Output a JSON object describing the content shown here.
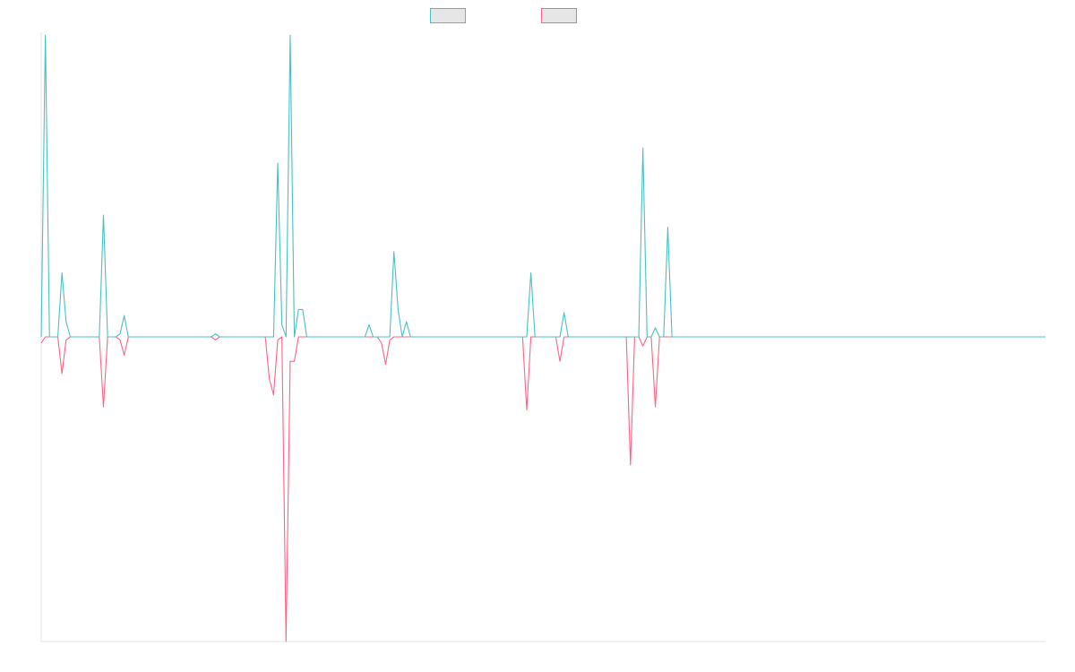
{
  "chart_data": {
    "type": "line",
    "title": "",
    "xlabel": "",
    "ylabel": "",
    "grid": false,
    "legend_placement": "top-center",
    "ylim": [
      -1,
      1
    ],
    "series": [
      {
        "color": "#4bc0c0",
        "legend_swatch_fill": "#e6e6e6",
        "values": [
          0,
          0.99,
          0,
          0,
          0,
          0.21,
          0.05,
          0,
          0,
          0,
          0,
          0,
          0,
          0,
          0,
          0.4,
          0,
          0,
          0,
          0.01,
          0.07,
          0,
          0,
          0,
          0,
          0,
          0,
          0,
          0,
          0,
          0,
          0,
          0,
          0,
          0,
          0,
          0,
          0,
          0,
          0,
          0,
          0,
          0.01,
          0,
          0,
          0,
          0,
          0,
          0,
          0,
          0,
          0,
          0,
          0,
          0,
          0,
          0,
          0.57,
          0.04,
          0,
          0.99,
          0,
          0.09,
          0.09,
          0,
          0,
          0,
          0,
          0,
          0,
          0,
          0,
          0,
          0,
          0,
          0,
          0,
          0,
          0,
          0.04,
          0,
          0,
          0,
          0,
          0,
          0.28,
          0.09,
          0,
          0.05,
          0,
          0,
          0,
          0,
          0,
          0,
          0,
          0,
          0,
          0,
          0,
          0,
          0,
          0,
          0,
          0,
          0,
          0,
          0,
          0,
          0,
          0,
          0,
          0,
          0,
          0,
          0,
          0,
          0,
          0.21,
          0,
          0,
          0,
          0,
          0,
          0,
          0,
          0.08,
          0,
          0,
          0,
          0,
          0,
          0,
          0,
          0,
          0,
          0,
          0,
          0,
          0,
          0,
          0,
          0,
          0,
          0,
          0.62,
          0,
          0,
          0.03,
          0,
          0,
          0.36,
          0,
          0,
          0,
          0,
          0,
          0,
          0,
          0,
          0,
          0,
          0,
          0,
          0,
          0,
          0,
          0,
          0,
          0,
          0,
          0,
          0,
          0,
          0,
          0,
          0,
          0,
          0,
          0,
          0,
          0,
          0,
          0,
          0,
          0,
          0,
          0,
          0,
          0,
          0,
          0,
          0,
          0,
          0,
          0,
          0,
          0,
          0,
          0,
          0,
          0,
          0,
          0,
          0,
          0,
          0,
          0,
          0,
          0,
          0,
          0,
          0,
          0,
          0,
          0,
          0,
          0,
          0,
          0,
          0,
          0,
          0,
          0,
          0,
          0,
          0,
          0,
          0,
          0,
          0,
          0,
          0,
          0,
          0,
          0,
          0,
          0,
          0,
          0,
          0,
          0,
          0
        ]
      },
      {
        "color": "#ff6384",
        "legend_swatch_fill": "#e6e6e6",
        "values": [
          -0.02,
          0,
          0,
          0,
          0,
          -0.12,
          -0.01,
          0,
          0,
          0,
          0,
          0,
          0,
          0,
          0,
          -0.23,
          0,
          0,
          0,
          -0.01,
          -0.06,
          0,
          0,
          0,
          0,
          0,
          0,
          0,
          0,
          0,
          0,
          0,
          0,
          0,
          0,
          0,
          0,
          0,
          0,
          0,
          0,
          0,
          -0.01,
          0,
          0,
          0,
          0,
          0,
          0,
          0,
          0,
          0,
          0,
          0,
          0,
          -0.14,
          -0.19,
          -0.01,
          0,
          -1,
          -0.08,
          -0.08,
          0,
          0,
          0,
          0,
          0,
          0,
          0,
          0,
          0,
          0,
          0,
          0,
          0,
          0,
          0,
          0,
          0,
          0,
          0,
          0,
          -0.02,
          -0.09,
          -0.01,
          0,
          0,
          0,
          0,
          0,
          0,
          0,
          0,
          0,
          0,
          0,
          0,
          0,
          0,
          0,
          0,
          0,
          0,
          0,
          0,
          0,
          0,
          0,
          0,
          0,
          0,
          0,
          0,
          0,
          0,
          0,
          0,
          -0.24,
          0,
          0,
          0,
          0,
          0,
          0,
          0,
          -0.08,
          0,
          0,
          0,
          0,
          0,
          0,
          0,
          0,
          0,
          0,
          0,
          0,
          0,
          0,
          0,
          0,
          -0.42,
          0,
          0,
          -0.03,
          0,
          0,
          -0.23,
          0,
          0,
          0,
          0,
          0,
          0,
          0,
          0,
          0,
          0,
          0,
          0,
          0,
          0,
          0,
          0,
          0,
          0,
          0,
          0,
          0,
          0,
          0,
          0,
          0,
          0,
          0,
          0,
          0,
          0,
          0,
          0,
          0,
          0,
          0,
          0,
          0,
          0,
          0,
          0,
          0,
          0,
          0,
          0,
          0,
          0,
          0,
          0,
          0,
          0,
          0,
          0,
          0,
          0,
          0,
          0,
          0,
          0,
          0,
          0,
          0,
          0,
          0,
          0,
          0,
          0,
          0,
          0,
          0,
          0,
          0,
          0,
          0,
          0,
          0,
          0,
          0,
          0,
          0,
          0,
          0,
          0,
          0,
          0,
          0,
          0,
          0,
          0
        ]
      }
    ]
  }
}
